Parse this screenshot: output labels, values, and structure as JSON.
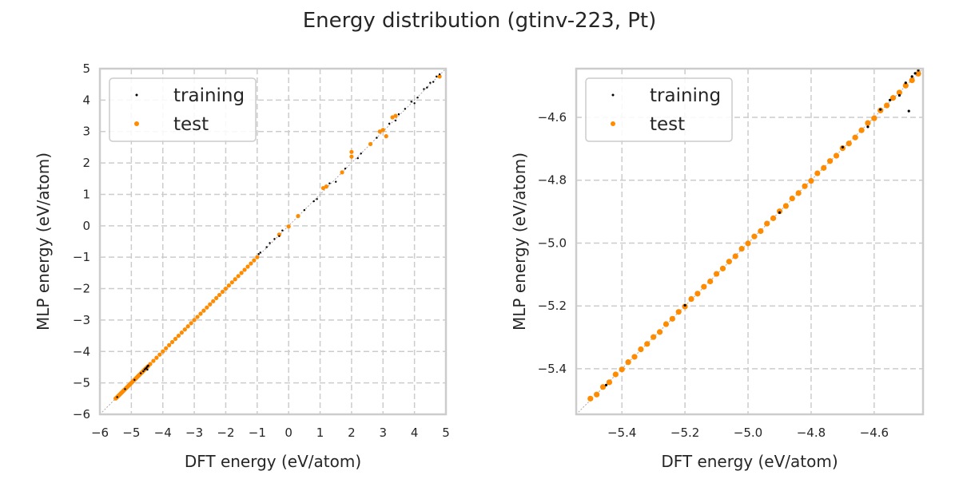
{
  "title": "Energy distribution (gtinv-223, Pt)",
  "colors": {
    "training": "#000000",
    "test": "#ff8c00",
    "grid": "#cccccc",
    "frame": "#cccccc",
    "diagonal": "#aaaaaa"
  },
  "chart_data": [
    {
      "type": "scatter",
      "xlabel": "DFT energy (eV/atom)",
      "ylabel": "MLP energy (eV/atom)",
      "xlim": [
        -6,
        5
      ],
      "ylim": [
        -6,
        5
      ],
      "xticks": [
        -6,
        -5,
        -4,
        -3,
        -2,
        -1,
        0,
        1,
        2,
        3,
        4,
        5
      ],
      "yticks": [
        -6,
        -5,
        -4,
        -3,
        -2,
        -1,
        0,
        1,
        2,
        3,
        4,
        5
      ],
      "xtick_labels": [
        "−6",
        "−5",
        "−4",
        "−3",
        "−2",
        "−1",
        "0",
        "1",
        "2",
        "3",
        "4",
        "5"
      ],
      "ytick_labels": [
        "−6",
        "−5",
        "−4",
        "−3",
        "−2",
        "−1",
        "0",
        "1",
        "2",
        "3",
        "4",
        "5"
      ],
      "grid": true,
      "legend": {
        "position": "top-left",
        "entries": [
          "training",
          "test"
        ]
      }
    },
    {
      "type": "scatter",
      "xlabel": "DFT energy (eV/atom)",
      "ylabel": "MLP energy (eV/atom)",
      "xlim": [
        -5.545,
        -4.445
      ],
      "ylim": [
        -5.545,
        -4.445
      ],
      "xticks": [
        -5.4,
        -5.2,
        -5.0,
        -4.8,
        -4.6
      ],
      "yticks": [
        -5.4,
        -5.2,
        -5.0,
        -4.8,
        -4.6
      ],
      "xtick_labels": [
        "−5.4",
        "−5.2",
        "−5.0",
        "−4.8",
        "−4.6"
      ],
      "ytick_labels": [
        "−5.4",
        "−5.2",
        "−5.0",
        "−4.8",
        "−4.6"
      ],
      "grid": true,
      "legend": {
        "position": "top-left",
        "entries": [
          "training",
          "test"
        ]
      }
    }
  ],
  "series": {
    "training": [
      [
        -5.45,
        -5.452
      ],
      [
        -5.2,
        -5.198
      ],
      [
        -4.9,
        -4.903
      ],
      [
        -4.7,
        -4.695
      ],
      [
        -4.62,
        -4.63
      ],
      [
        -4.58,
        -4.575
      ],
      [
        -4.55,
        -4.545
      ],
      [
        -4.52,
        -4.53
      ],
      [
        -4.5,
        -4.49
      ],
      [
        -4.49,
        -4.58
      ],
      [
        -4.48,
        -4.47
      ],
      [
        -4.47,
        -4.46
      ],
      [
        -4.46,
        -4.45
      ],
      [
        -0.95,
        -0.9
      ],
      [
        -0.9,
        -0.85
      ],
      [
        -0.7,
        -0.68
      ],
      [
        -0.6,
        -0.55
      ],
      [
        -0.45,
        -0.42
      ],
      [
        -0.3,
        -0.33
      ],
      [
        -0.2,
        -0.15
      ],
      [
        0.5,
        0.5
      ],
      [
        0.8,
        0.78
      ],
      [
        0.9,
        0.85
      ],
      [
        1.3,
        1.35
      ],
      [
        1.5,
        1.4
      ],
      [
        1.8,
        1.82
      ],
      [
        2.2,
        2.15
      ],
      [
        2.3,
        2.3
      ],
      [
        2.8,
        2.8
      ],
      [
        3.2,
        3.25
      ],
      [
        3.4,
        3.35
      ],
      [
        3.5,
        3.55
      ],
      [
        3.7,
        3.72
      ],
      [
        3.9,
        3.95
      ],
      [
        4.0,
        3.9
      ],
      [
        4.1,
        4.08
      ],
      [
        4.3,
        4.35
      ],
      [
        4.4,
        4.4
      ],
      [
        4.5,
        4.55
      ],
      [
        4.6,
        4.58
      ],
      [
        4.7,
        4.75
      ],
      [
        4.8,
        4.82
      ]
    ],
    "test": [
      [
        -5.5,
        -5.495
      ],
      [
        -5.48,
        -5.482
      ],
      [
        -5.46,
        -5.458
      ],
      [
        -5.44,
        -5.443
      ],
      [
        -5.42,
        -5.418
      ],
      [
        -5.4,
        -5.402
      ],
      [
        -5.38,
        -5.379
      ],
      [
        -5.36,
        -5.362
      ],
      [
        -5.34,
        -5.338
      ],
      [
        -5.32,
        -5.321
      ],
      [
        -5.3,
        -5.299
      ],
      [
        -5.28,
        -5.283
      ],
      [
        -5.26,
        -5.258
      ],
      [
        -5.24,
        -5.241
      ],
      [
        -5.22,
        -5.219
      ],
      [
        -5.2,
        -5.202
      ],
      [
        -5.18,
        -5.178
      ],
      [
        -5.16,
        -5.161
      ],
      [
        -5.14,
        -5.139
      ],
      [
        -5.12,
        -5.122
      ],
      [
        -5.1,
        -5.098
      ],
      [
        -5.08,
        -5.081
      ],
      [
        -5.06,
        -5.059
      ],
      [
        -5.04,
        -5.042
      ],
      [
        -5.02,
        -5.018
      ],
      [
        -5.0,
        -5.001
      ],
      [
        -4.98,
        -4.979
      ],
      [
        -4.96,
        -4.962
      ],
      [
        -4.94,
        -4.938
      ],
      [
        -4.92,
        -4.921
      ],
      [
        -4.9,
        -4.899
      ],
      [
        -4.88,
        -4.882
      ],
      [
        -4.86,
        -4.858
      ],
      [
        -4.84,
        -4.841
      ],
      [
        -4.82,
        -4.819
      ],
      [
        -4.8,
        -4.802
      ],
      [
        -4.78,
        -4.778
      ],
      [
        -4.76,
        -4.761
      ],
      [
        -4.74,
        -4.739
      ],
      [
        -4.72,
        -4.722
      ],
      [
        -4.7,
        -4.698
      ],
      [
        -4.68,
        -4.683
      ],
      [
        -4.66,
        -4.664
      ],
      [
        -4.64,
        -4.641
      ],
      [
        -4.62,
        -4.618
      ],
      [
        -4.6,
        -4.603
      ],
      [
        -4.58,
        -4.578
      ],
      [
        -4.56,
        -4.562
      ],
      [
        -4.54,
        -4.538
      ],
      [
        -4.52,
        -4.521
      ],
      [
        -4.5,
        -4.499
      ],
      [
        -4.48,
        -4.482
      ],
      [
        -4.46,
        -4.461
      ],
      [
        -4.4,
        -4.4
      ],
      [
        -4.3,
        -4.3
      ],
      [
        -4.2,
        -4.2
      ],
      [
        -4.1,
        -4.1
      ],
      [
        -4.0,
        -4.0
      ],
      [
        -3.9,
        -3.9
      ],
      [
        -3.8,
        -3.8
      ],
      [
        -3.7,
        -3.7
      ],
      [
        -3.6,
        -3.6
      ],
      [
        -3.5,
        -3.5
      ],
      [
        -3.4,
        -3.4
      ],
      [
        -3.3,
        -3.3
      ],
      [
        -3.2,
        -3.2
      ],
      [
        -3.1,
        -3.1
      ],
      [
        -3.0,
        -3.0
      ],
      [
        -2.9,
        -2.9
      ],
      [
        -2.8,
        -2.8
      ],
      [
        -2.7,
        -2.7
      ],
      [
        -2.6,
        -2.6
      ],
      [
        -2.5,
        -2.5
      ],
      [
        -2.4,
        -2.4
      ],
      [
        -2.3,
        -2.3
      ],
      [
        -2.2,
        -2.2
      ],
      [
        -2.1,
        -2.1
      ],
      [
        -2.0,
        -2.0
      ],
      [
        -1.9,
        -1.9
      ],
      [
        -1.8,
        -1.8
      ],
      [
        -1.7,
        -1.7
      ],
      [
        -1.6,
        -1.6
      ],
      [
        -1.5,
        -1.5
      ],
      [
        -1.4,
        -1.4
      ],
      [
        -1.3,
        -1.3
      ],
      [
        -1.2,
        -1.2
      ],
      [
        -1.1,
        -1.1
      ],
      [
        -1.0,
        -1.0
      ],
      [
        -0.3,
        -0.28
      ],
      [
        0.0,
        -0.02
      ],
      [
        0.3,
        0.31
      ],
      [
        1.1,
        1.2
      ],
      [
        1.2,
        1.25
      ],
      [
        1.7,
        1.7
      ],
      [
        2.0,
        2.35
      ],
      [
        2.0,
        2.2
      ],
      [
        2.6,
        2.6
      ],
      [
        2.9,
        3.0
      ],
      [
        3.0,
        3.05
      ],
      [
        3.1,
        2.85
      ],
      [
        3.3,
        3.45
      ],
      [
        3.4,
        3.5
      ],
      [
        4.8,
        4.75
      ]
    ]
  }
}
